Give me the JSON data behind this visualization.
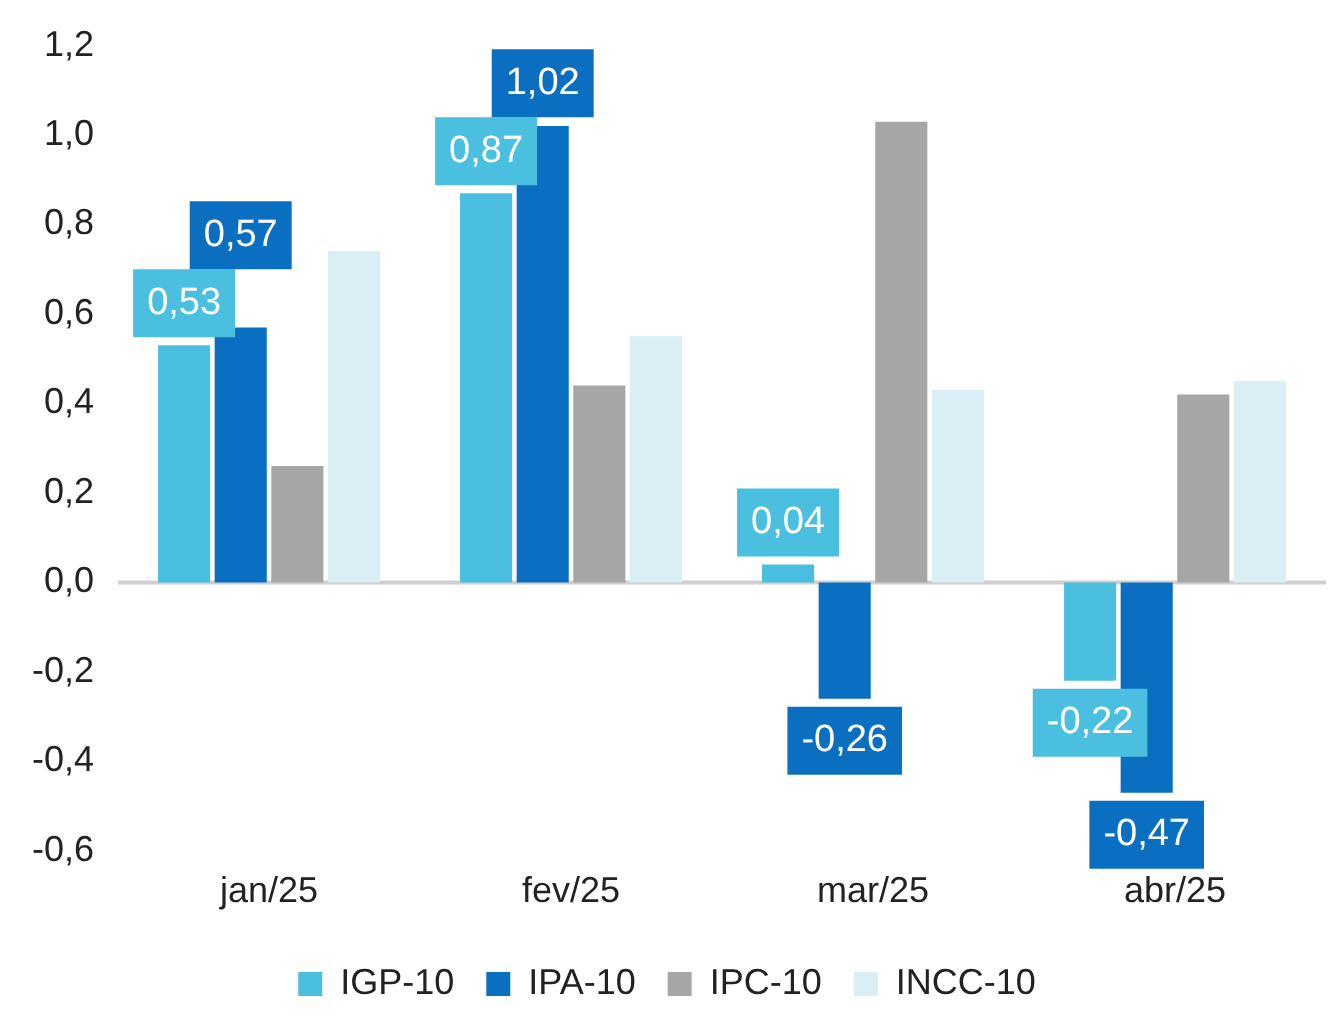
{
  "chart_data": {
    "type": "bar",
    "categories": [
      "jan/25",
      "fev/25",
      "mar/25",
      "abr/25"
    ],
    "series": [
      {
        "name": "IGP-10",
        "color": "#4bbfe0",
        "values": [
          0.53,
          0.87,
          0.04,
          -0.22
        ],
        "value_labels": [
          "0,53",
          "0,87",
          "0,04",
          "-0,22"
        ]
      },
      {
        "name": "IPA-10",
        "color": "#0b6fc1",
        "values": [
          0.57,
          1.02,
          -0.26,
          -0.47
        ],
        "value_labels": [
          "0,57",
          "1,02",
          "-0,26",
          "-0,47"
        ]
      },
      {
        "name": "IPC-10",
        "color": "#a6a6a6",
        "values": [
          0.26,
          0.44,
          1.03,
          0.42
        ]
      },
      {
        "name": "INCC-10",
        "color": "#daeef5",
        "values": [
          0.74,
          0.55,
          0.43,
          0.45
        ]
      }
    ],
    "ylim": [
      -0.6,
      1.2
    ],
    "yticks": [
      {
        "value": -0.6,
        "label": "-0,6"
      },
      {
        "value": -0.4,
        "label": "-0,4"
      },
      {
        "value": -0.2,
        "label": "-0,2"
      },
      {
        "value": 0,
        "label": "0,0"
      },
      {
        "value": 0.2,
        "label": "0,2"
      },
      {
        "value": 0.4,
        "label": "0,4"
      },
      {
        "value": 0.6,
        "label": "0,6"
      },
      {
        "value": 0.8,
        "label": "0,8"
      },
      {
        "value": 1,
        "label": "1,0"
      },
      {
        "value": 1.2,
        "label": "1,2"
      }
    ],
    "ref_lines": [
      {
        "axis": "y",
        "value": 0,
        "color": "#d0d0d0"
      }
    ],
    "grid": false,
    "legend": "bottom"
  }
}
